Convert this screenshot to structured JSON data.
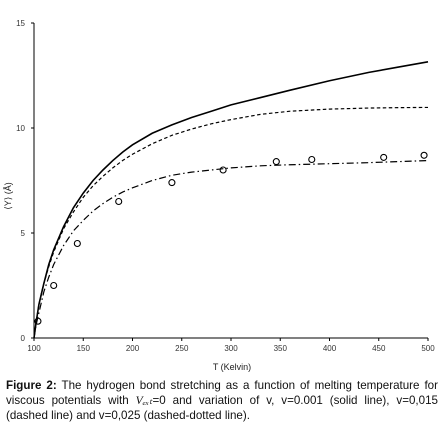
{
  "chart_data": {
    "type": "line",
    "xlabel": "T (Kelvin)",
    "ylabel": "⟨Y⟩ (Å)",
    "xlim": [
      100,
      500
    ],
    "ylim": [
      0,
      15
    ],
    "x_ticks": [
      "100",
      "150",
      "200",
      "250",
      "300",
      "350",
      "400",
      "450",
      "500"
    ],
    "y_ticks": [
      "0",
      "5",
      "10",
      "15"
    ],
    "grid": false,
    "legend": "none",
    "series": [
      {
        "style": "solid",
        "points": [
          [
            100,
            0
          ],
          [
            102,
            0.7
          ],
          [
            105,
            1.6
          ],
          [
            110,
            2.6
          ],
          [
            115,
            3.5
          ],
          [
            120,
            4.2
          ],
          [
            130,
            5.3
          ],
          [
            140,
            6.2
          ],
          [
            150,
            6.9
          ],
          [
            160,
            7.5
          ],
          [
            170,
            8.0
          ],
          [
            180,
            8.45
          ],
          [
            190,
            8.85
          ],
          [
            200,
            9.2
          ],
          [
            220,
            9.75
          ],
          [
            240,
            10.15
          ],
          [
            260,
            10.5
          ],
          [
            280,
            10.8
          ],
          [
            300,
            11.1
          ],
          [
            330,
            11.45
          ],
          [
            360,
            11.8
          ],
          [
            400,
            12.25
          ],
          [
            440,
            12.65
          ],
          [
            470,
            12.9
          ],
          [
            500,
            13.15
          ]
        ]
      },
      {
        "style": "dashed",
        "points": [
          [
            100,
            0
          ],
          [
            102,
            0.7
          ],
          [
            105,
            1.6
          ],
          [
            110,
            2.6
          ],
          [
            115,
            3.4
          ],
          [
            120,
            4.1
          ],
          [
            130,
            5.2
          ],
          [
            140,
            6.0
          ],
          [
            150,
            6.7
          ],
          [
            160,
            7.25
          ],
          [
            170,
            7.7
          ],
          [
            180,
            8.1
          ],
          [
            190,
            8.45
          ],
          [
            200,
            8.75
          ],
          [
            220,
            9.25
          ],
          [
            240,
            9.65
          ],
          [
            260,
            9.95
          ],
          [
            280,
            10.2
          ],
          [
            300,
            10.4
          ],
          [
            330,
            10.65
          ],
          [
            360,
            10.8
          ],
          [
            400,
            10.9
          ],
          [
            440,
            10.95
          ],
          [
            470,
            10.97
          ],
          [
            500,
            10.98
          ]
        ]
      },
      {
        "style": "dash-dot",
        "points": [
          [
            100,
            0
          ],
          [
            102,
            0.6
          ],
          [
            105,
            1.2
          ],
          [
            110,
            2.2
          ],
          [
            115,
            2.9
          ],
          [
            120,
            3.5
          ],
          [
            130,
            4.4
          ],
          [
            140,
            5.1
          ],
          [
            150,
            5.6
          ],
          [
            160,
            6.05
          ],
          [
            170,
            6.4
          ],
          [
            180,
            6.7
          ],
          [
            190,
            6.95
          ],
          [
            200,
            7.15
          ],
          [
            220,
            7.5
          ],
          [
            240,
            7.75
          ],
          [
            260,
            7.9
          ],
          [
            280,
            8.0
          ],
          [
            300,
            8.1
          ],
          [
            330,
            8.2
          ],
          [
            360,
            8.25
          ],
          [
            400,
            8.3
          ],
          [
            440,
            8.35
          ],
          [
            470,
            8.4
          ],
          [
            500,
            8.45
          ]
        ]
      },
      {
        "style": "markers",
        "marker": "open-circle",
        "points": [
          [
            104,
            0.8
          ],
          [
            120,
            2.5
          ],
          [
            144,
            4.5
          ],
          [
            186,
            6.5
          ],
          [
            240,
            7.4
          ],
          [
            292,
            8.0
          ],
          [
            346,
            8.4
          ],
          [
            382,
            8.5
          ],
          [
            455,
            8.6
          ],
          [
            496,
            8.7
          ]
        ]
      }
    ]
  },
  "caption": {
    "label": "Figure 2:",
    "text_before_symbol": " The hydrogen bond stretching as a function of melting temperature for viscous potentials with ",
    "symbol": "Vₑₓₜ",
    "text_after_symbol": "=0 and variation of v, v=0.001 (solid line), v=0,015 (dashed line) and v=0,025 (dashed-dotted line)."
  }
}
